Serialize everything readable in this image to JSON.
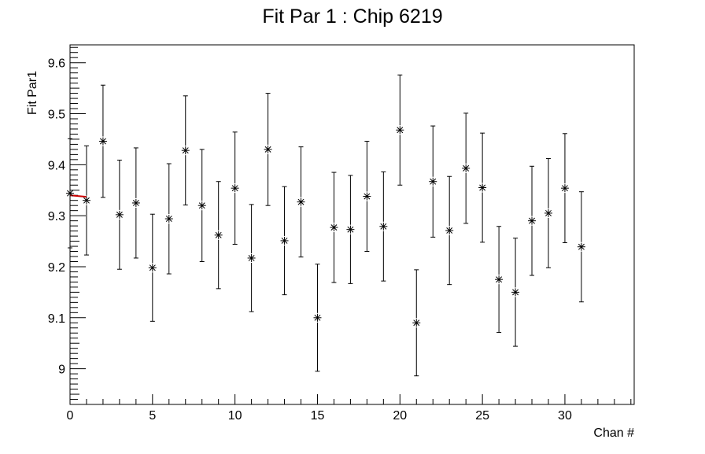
{
  "chart_data": {
    "type": "scatter",
    "title": "Fit Par 1 : Chip 6219",
    "xlabel": "Chan #",
    "ylabel": "Fit Par1",
    "xlim": [
      0,
      34.2
    ],
    "ylim": [
      8.93,
      9.635
    ],
    "x_ticks": [
      0,
      5,
      10,
      15,
      20,
      25,
      30
    ],
    "y_ticks": [
      9,
      9.1,
      9.2,
      9.3,
      9.4,
      9.5,
      9.6
    ],
    "x_tick_labels": [
      "0",
      "5",
      "10",
      "15",
      "20",
      "25",
      "30"
    ],
    "y_tick_labels": [
      "9",
      "9.1",
      "9.2",
      "9.3",
      "9.4",
      "9.5",
      "9.6"
    ],
    "grid": false,
    "legend": "none",
    "marker": "asterisk",
    "marker_color": "#000000",
    "fit_line_color": "#cc0000",
    "fit_line": {
      "x": [
        0,
        1
      ],
      "y": [
        9.34,
        9.337
      ]
    },
    "series": [
      {
        "x": [
          0,
          1,
          2,
          3,
          4,
          5,
          6,
          7,
          8,
          9,
          10,
          11,
          12,
          13,
          14,
          15,
          16,
          17,
          18,
          19,
          20,
          21,
          22,
          23,
          24,
          25,
          26,
          27,
          28,
          29,
          30,
          31
        ],
        "y": [
          9.344,
          9.33,
          9.446,
          9.302,
          9.325,
          9.198,
          9.294,
          9.428,
          9.32,
          9.262,
          9.354,
          9.217,
          9.43,
          9.251,
          9.327,
          9.1,
          9.277,
          9.273,
          9.338,
          9.279,
          9.468,
          9.09,
          9.367,
          9.271,
          9.393,
          9.355,
          9.175,
          9.15,
          9.29,
          9.305,
          9.354,
          9.239
        ],
        "err": [
          0.107,
          0.107,
          0.11,
          0.107,
          0.108,
          0.105,
          0.108,
          0.107,
          0.11,
          0.105,
          0.11,
          0.105,
          0.11,
          0.106,
          0.108,
          0.105,
          0.108,
          0.106,
          0.108,
          0.107,
          0.108,
          0.104,
          0.109,
          0.106,
          0.108,
          0.107,
          0.104,
          0.106,
          0.107,
          0.107,
          0.107,
          0.108
        ]
      }
    ]
  }
}
